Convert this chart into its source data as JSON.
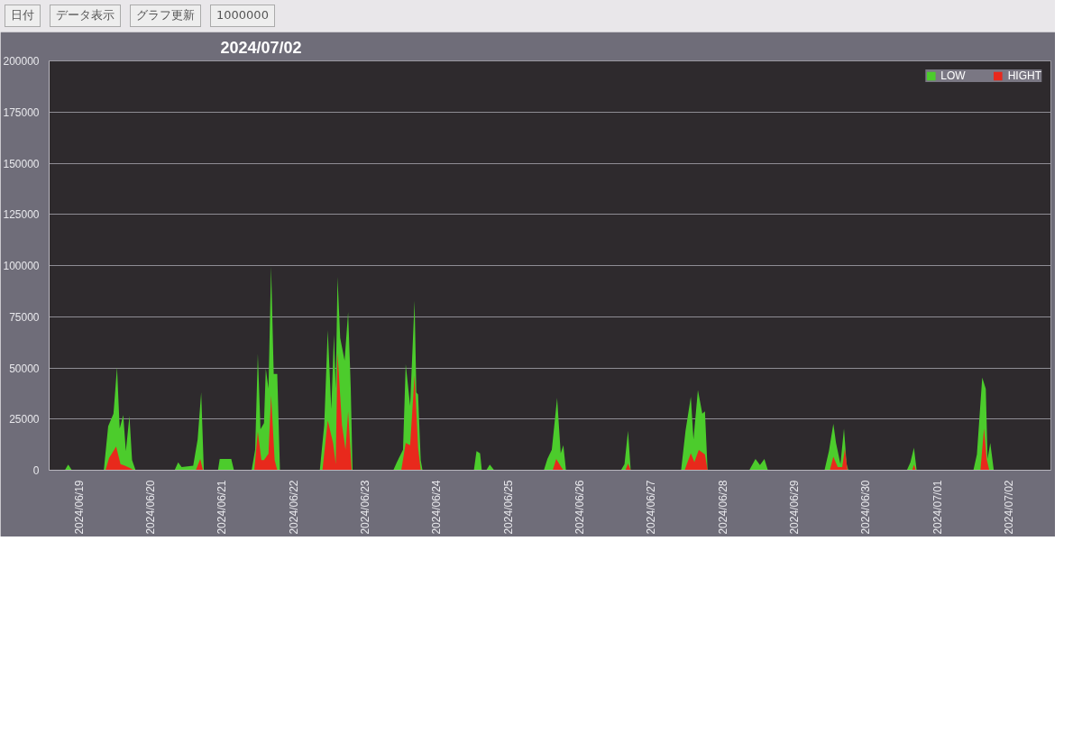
{
  "chart_data": {
    "type": "area",
    "title": "2024/07/02",
    "annotations": [
      "日付",
      "データ表示",
      "グラフ更新",
      "1000000"
    ],
    "series": [
      {
        "name": "LOW",
        "color": "#4ccc2c",
        "x": [
          "2024-06-18T14:00",
          "2024-06-18T19:15",
          "2024-06-18T20:24",
          "2024-06-18T21:38",
          "2024-06-19T08:20",
          "2024-06-19T09:48",
          "2024-06-19T11:35",
          "2024-06-19T12:46",
          "2024-06-19T13:40",
          "2024-06-19T14:51",
          "2024-06-19T15:44",
          "2024-06-19T16:56",
          "2024-06-19T17:49",
          "2024-06-19T19:00",
          "2024-06-20T08:05",
          "2024-06-20T09:16",
          "2024-06-20T10:27",
          "2024-06-20T14:19",
          "2024-06-20T15:48",
          "2024-06-20T17:00",
          "2024-06-20T17:53",
          "2024-06-20T22:38",
          "2024-06-20T23:13",
          "2024-06-21T03:05",
          "2024-06-21T04:00",
          "2024-06-21T09:55",
          "2024-06-21T11:06",
          "2024-06-21T12:00",
          "2024-06-21T12:53",
          "2024-06-21T14:04",
          "2024-06-21T14:40",
          "2024-06-21T15:34",
          "2024-06-21T16:27",
          "2024-06-21T17:20",
          "2024-06-21T18:31",
          "2024-06-21T19:25",
          "2024-06-22T08:47",
          "2024-06-22T10:16",
          "2024-06-22T11:27",
          "2024-06-22T12:38",
          "2024-06-22T13:32",
          "2024-06-22T14:08",
          "2024-06-22T14:44",
          "2024-06-22T15:37",
          "2024-06-22T17:06",
          "2024-06-22T18:17",
          "2024-06-22T19:10",
          "2024-06-22T19:46",
          "2024-06-23T09:26",
          "2024-06-23T10:37",
          "2024-06-23T12:42",
          "2024-06-23T13:36",
          "2024-06-23T15:05",
          "2024-06-23T16:34",
          "2024-06-23T17:10",
          "2024-06-23T17:45",
          "2024-06-23T18:38",
          "2024-06-23T19:14",
          "2024-06-24T12:28",
          "2024-06-24T13:21",
          "2024-06-24T14:32",
          "2024-06-24T15:08",
          "2024-06-24T16:37",
          "2024-06-24T17:48",
          "2024-06-24T19:17",
          "2024-06-25T11:56",
          "2024-06-25T13:07",
          "2024-06-25T14:36",
          "2024-06-25T16:23",
          "2024-06-25T17:35",
          "2024-06-25T18:28",
          "2024-06-25T19:21",
          "2024-06-26T13:47",
          "2024-06-26T14:59",
          "2024-06-26T16:10",
          "2024-06-26T17:04",
          "2024-06-27T09:58",
          "2024-06-27T11:27",
          "2024-06-27T13:14",
          "2024-06-27T14:07",
          "2024-06-27T15:36",
          "2024-06-27T17:05",
          "2024-06-27T17:58",
          "2024-06-27T18:51",
          "2024-06-28T08:50",
          "2024-06-28T10:55",
          "2024-06-28T12:25",
          "2024-06-28T13:54",
          "2024-06-28T15:05",
          "2024-06-29T10:04",
          "2024-06-29T11:33",
          "2024-06-29T13:02",
          "2024-06-29T13:56",
          "2024-06-29T15:25",
          "2024-06-29T16:36",
          "2024-06-29T17:29",
          "2024-06-29T18:05",
          "2024-06-30T13:41",
          "2024-06-30T14:53",
          "2024-06-30T16:04",
          "2024-06-30T16:58",
          "2024-07-01T12:00",
          "2024-07-01T13:11",
          "2024-07-01T14:58",
          "2024-07-01T16:10",
          "2024-07-01T16:46",
          "2024-07-01T17:40",
          "2024-07-01T18:51",
          "2024-07-02T14:00"
        ],
        "values": [
          0,
          0,
          2800,
          0,
          0,
          21500,
          27600,
          50300,
          20400,
          27000,
          9400,
          26500,
          5000,
          0,
          0,
          3900,
          1500,
          2200,
          15000,
          38100,
          0,
          0,
          5500,
          5500,
          0,
          0,
          10000,
          56900,
          20000,
          23000,
          49700,
          40000,
          99500,
          47000,
          47000,
          0,
          0,
          22000,
          68500,
          29800,
          66300,
          40000,
          94500,
          64600,
          53600,
          77300,
          40000,
          0,
          0,
          3900,
          10000,
          51900,
          31500,
          82900,
          38000,
          37000,
          5000,
          0,
          0,
          9400,
          8300,
          0,
          0,
          2800,
          0,
          0,
          5500,
          10000,
          35400,
          8300,
          12200,
          0,
          0,
          3000,
          19300,
          0,
          0,
          19300,
          35900,
          15000,
          39200,
          27600,
          28700,
          0,
          0,
          5500,
          2500,
          5500,
          0,
          0,
          9400,
          22700,
          13300,
          3000,
          20400,
          3000,
          0,
          0,
          3900,
          11000,
          0,
          0,
          7700,
          45300,
          39800,
          5500,
          13300,
          0,
          0
        ]
      },
      {
        "name": "HIGHT",
        "color": "#e8291c",
        "x": [
          "2024-06-18T14:00",
          "2024-06-19T08:55",
          "2024-06-19T10:06",
          "2024-06-19T12:28",
          "2024-06-19T13:57",
          "2024-06-19T15:26",
          "2024-06-19T17:14",
          "2024-06-19T18:25",
          "2024-06-20T15:12",
          "2024-06-20T16:41",
          "2024-06-20T17:35",
          "2024-06-21T10:48",
          "2024-06-21T12:00",
          "2024-06-21T13:11",
          "2024-06-21T14:04",
          "2024-06-21T15:34",
          "2024-06-21T16:27",
          "2024-06-21T17:38",
          "2024-06-21T18:31",
          "2024-06-22T09:40",
          "2024-06-22T11:27",
          "2024-06-22T13:14",
          "2024-06-22T14:08",
          "2024-06-22T14:44",
          "2024-06-22T16:13",
          "2024-06-22T17:24",
          "2024-06-22T18:17",
          "2024-06-22T19:28",
          "2024-06-23T12:06",
          "2024-06-23T13:36",
          "2024-06-23T15:05",
          "2024-06-23T16:34",
          "2024-06-23T17:45",
          "2024-06-23T18:38",
          "2024-06-25T14:54",
          "2024-06-25T16:05",
          "2024-06-25T17:35",
          "2024-06-25T18:28",
          "2024-06-26T15:17",
          "2024-06-26T16:10",
          "2024-06-26T17:04",
          "2024-06-27T11:09",
          "2024-06-27T13:14",
          "2024-06-27T14:25",
          "2024-06-27T15:54",
          "2024-06-27T17:58",
          "2024-06-27T18:51",
          "2024-06-29T11:51",
          "2024-06-29T13:02",
          "2024-06-29T14:31",
          "2024-06-29T16:00",
          "2024-06-29T16:54",
          "2024-06-29T17:47",
          "2024-06-30T15:29",
          "2024-06-30T16:04",
          "2024-06-30T16:40",
          "2024-07-01T14:22",
          "2024-07-01T15:34",
          "2024-07-01T16:27",
          "2024-07-01T17:20",
          "2024-07-02T14:00"
        ],
        "values": [
          0,
          0,
          6000,
          11600,
          3000,
          2200,
          1000,
          0,
          0,
          5500,
          0,
          0,
          18800,
          5000,
          5000,
          8000,
          36500,
          5000,
          0,
          0,
          24300,
          13300,
          3000,
          57500,
          22100,
          10000,
          28700,
          0,
          0,
          13300,
          12200,
          46400,
          11000,
          0,
          0,
          5500,
          2000,
          0,
          0,
          3300,
          0,
          0,
          8300,
          4000,
          9900,
          7700,
          0,
          0,
          6600,
          1500,
          1500,
          10500,
          0,
          0,
          2800,
          0,
          0,
          20400,
          5500,
          0,
          0
        ]
      }
    ],
    "xlim": [
      "2024-06-18T14:00",
      "2024-07-02T14:00"
    ],
    "xticks": [
      {
        "value": "2024-06-19",
        "label": "2024/06/19"
      },
      {
        "value": "2024-06-20",
        "label": "2024/06/20"
      },
      {
        "value": "2024-06-21",
        "label": "2024/06/21"
      },
      {
        "value": "2024-06-22",
        "label": "2024/06/22"
      },
      {
        "value": "2024-06-23",
        "label": "2024/06/23"
      },
      {
        "value": "2024-06-24",
        "label": "2024/06/24"
      },
      {
        "value": "2024-06-25",
        "label": "2024/06/25"
      },
      {
        "value": "2024-06-26",
        "label": "2024/06/26"
      },
      {
        "value": "2024-06-27",
        "label": "2024/06/27"
      },
      {
        "value": "2024-06-28",
        "label": "2024/06/28"
      },
      {
        "value": "2024-06-29",
        "label": "2024/06/29"
      },
      {
        "value": "2024-06-30",
        "label": "2024/06/30"
      },
      {
        "value": "2024-07-01",
        "label": "2024/07/01"
      },
      {
        "value": "2024-07-02",
        "label": "2024/07/02"
      }
    ],
    "ylim": [
      0,
      200000
    ],
    "yticks": [
      0,
      25000,
      50000,
      75000,
      100000,
      125000,
      150000,
      175000,
      200000
    ],
    "grid": "y",
    "legend": "top"
  }
}
